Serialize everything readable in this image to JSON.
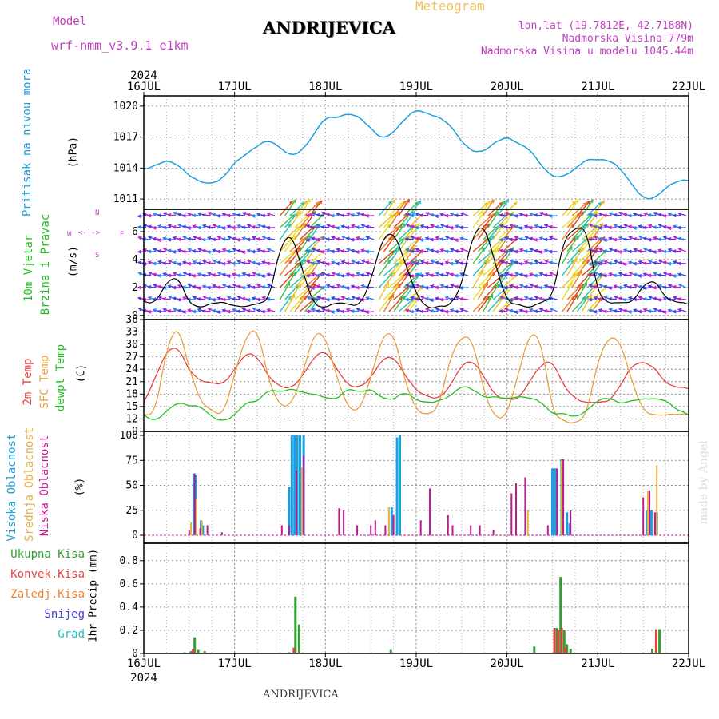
{
  "header": {
    "model_label": "Model",
    "model_name": "wrf-nmm_v3.9.1  e1km",
    "station": "ANDRIJEVICA",
    "meteogram": "Meteogram",
    "lonlat": "lon,lat (19.7812E, 42.7188N)",
    "altitude": "Nadmorska Visina 779m",
    "model_altitude": "Nadmorska Visina u modelu 1045.44m"
  },
  "footer": {
    "station": "ANDRIJEVICA",
    "credit": "made by Angel"
  },
  "colors": {
    "pressure": "#1a9fdf",
    "temp2m": "#e84040",
    "sfc": "#e8a040",
    "dewpt": "#20c020",
    "high_cloud": "#1a9fdf",
    "mid_cloud": "#e8b040",
    "low_cloud": "#c01890",
    "total_rain": "#30a030",
    "conv_rain": "#e84040",
    "frozen": "#f08030",
    "snow": "#4040e0",
    "hail": "#20c0c0",
    "wind_dir": "#c040c0"
  },
  "wind_compass": {
    "w": "W",
    "e": "E",
    "n": "N",
    "s": "S"
  },
  "chart_data": [
    {
      "type": "line",
      "panel": "pressure",
      "ylabel": [
        "Pritisak na nivou mora",
        "(hPa)"
      ],
      "ylim": [
        1010,
        1021
      ],
      "yticks": [
        1011,
        1014,
        1017,
        1020
      ],
      "x_days": [
        "16JUL",
        "17JUL",
        "18JUL",
        "19JUL",
        "20JUL",
        "21JUL",
        "22JUL"
      ],
      "x_year": "2024",
      "grid": true,
      "series": [
        {
          "values_every_6h": [
            1013.9,
            1014.3,
            1014.8,
            1014.3,
            1013.2,
            1012.6,
            1012.5,
            1013.1,
            1014.6,
            1015.3,
            1016.1,
            1016.7,
            1016.0,
            1015.2,
            1015.8,
            1017.3,
            1018.9,
            1018.8,
            1019.3,
            1019.0,
            1017.9,
            1016.8,
            1017.4,
            1018.7,
            1019.7,
            1019.3,
            1019.0,
            1018.2,
            1016.5,
            1015.5,
            1015.6,
            1016.6,
            1017.1,
            1016.4,
            1015.8,
            1014.2,
            1013.1,
            1013.2,
            1014.0,
            1014.9,
            1014.8,
            1014.7,
            1013.9,
            1012.4,
            1011.1,
            1011.1,
            1012.1,
            1012.7,
            1012.8
          ]
        }
      ]
    },
    {
      "type": "line",
      "panel": "wind",
      "ylabel": [
        "10m Vjetar",
        "Brzina i Pravac",
        "(m/s)"
      ],
      "ylim": [
        -0.3,
        7.6
      ],
      "yticks": [
        0,
        2,
        4,
        6
      ],
      "grid": true,
      "series": [
        {
          "name": "wind speed",
          "values_every_6h": [
            1.0,
            0.9,
            2.4,
            2.8,
            0.8,
            0.5,
            0.9,
            1.0,
            0.7,
            0.6,
            0.8,
            1.0,
            4.9,
            6.0,
            3.2,
            0.7,
            0.5,
            0.9,
            0.8,
            0.7,
            2.5,
            5.5,
            6.0,
            3.8,
            1.5,
            0.5,
            0.7,
            0.7,
            2.1,
            5.8,
            6.5,
            3.6,
            1.0,
            0.8,
            0.5,
            0.9,
            1.2,
            5.5,
            6.3,
            6.3,
            1.5,
            0.8,
            0.9,
            0.9,
            2.2,
            2.6,
            1.2,
            0.9,
            0.8
          ]
        }
      ]
    },
    {
      "type": "line",
      "panel": "temperature",
      "ylabel": [
        "2m Temp",
        "SFC Temp",
        "dewpt Temp",
        "(C)"
      ],
      "ylim": [
        9,
        36
      ],
      "yticks": [
        9,
        12,
        15,
        18,
        21,
        24,
        27,
        30,
        33,
        36
      ],
      "grid": true,
      "series": [
        {
          "name": "2m Temp",
          "values_every_6h": [
            16.0,
            22.0,
            28.5,
            29.5,
            23.5,
            21.0,
            20.8,
            20.5,
            24.0,
            28.0,
            27.0,
            22.0,
            19.8,
            19.5,
            22.5,
            27.0,
            28.5,
            24.0,
            20.0,
            19.7,
            22.0,
            26.5,
            27.0,
            22.5,
            18.8,
            17.5,
            17.0,
            20.0,
            25.0,
            26.0,
            22.0,
            17.5,
            17.0,
            16.8,
            21.0,
            25.0,
            26.0,
            20.0,
            17.0,
            16.0,
            16.0,
            16.0,
            20.0,
            25.0,
            26.0,
            24.5,
            20.5,
            19.5,
            19.3
          ]
        },
        {
          "name": "SFC Temp",
          "values_every_6h": [
            13.0,
            13.5,
            29.0,
            35.0,
            24.0,
            16.0,
            14.0,
            13.0,
            23.0,
            32.0,
            34.0,
            21.0,
            15.0,
            15.5,
            23.0,
            33.0,
            32.0,
            22.0,
            14.5,
            14.0,
            22.0,
            32.0,
            33.0,
            21.0,
            14.0,
            13.0,
            15.0,
            27.0,
            32.0,
            31.0,
            18.0,
            12.0,
            13.0,
            23.0,
            33.0,
            31.0,
            13.5,
            11.5,
            11.0,
            13.0,
            26.0,
            32.0,
            30.5,
            21.0,
            14.0,
            13.0,
            13.0,
            13.0,
            13.0
          ]
        },
        {
          "name": "dewpt Temp",
          "values_every_6h": [
            13.0,
            11.5,
            14.0,
            16.0,
            15.0,
            15.0,
            12.5,
            11.5,
            13.0,
            16.0,
            16.0,
            19.0,
            18.5,
            19.5,
            18.5,
            18.0,
            17.0,
            16.5,
            19.5,
            18.5,
            19.5,
            17.0,
            16.5,
            18.5,
            16.5,
            16.0,
            16.5,
            17.5,
            20.0,
            19.0,
            17.0,
            17.5,
            17.0,
            17.5,
            17.0,
            16.0,
            13.0,
            13.5,
            12.5,
            14.0,
            16.5,
            17.0,
            15.5,
            16.5,
            17.0,
            17.0,
            16.5,
            14.0,
            13.0
          ]
        }
      ]
    },
    {
      "type": "bar",
      "panel": "clouds",
      "ylabel": [
        "Visoka Oblacnost",
        "Srednja Oblacnost",
        "Niska Oblacnost",
        "(%)"
      ],
      "ylim": [
        -8,
        104
      ],
      "yticks": [
        0,
        25,
        50,
        75,
        100
      ],
      "grid": true,
      "series": [
        {
          "name": "Visoka Oblacnost",
          "points": [
            [
              0.55,
              62
            ],
            [
              0.57,
              60
            ],
            [
              0.63,
              15
            ],
            [
              0.65,
              10
            ],
            [
              1.6,
              48
            ],
            [
              1.63,
              100
            ],
            [
              1.66,
              100
            ],
            [
              1.69,
              100
            ],
            [
              1.72,
              100
            ],
            [
              1.76,
              100
            ],
            [
              2.79,
              98
            ],
            [
              2.82,
              100
            ],
            [
              2.73,
              28
            ],
            [
              4.5,
              67
            ],
            [
              4.53,
              67
            ],
            [
              4.6,
              76
            ],
            [
              4.66,
              23
            ],
            [
              4.69,
              12
            ],
            [
              5.54,
              25
            ],
            [
              5.59,
              25
            ],
            [
              5.65,
              23
            ]
          ]
        },
        {
          "name": "Srednja Oblacnost",
          "points": [
            [
              0.52,
              13
            ],
            [
              0.58,
              37
            ],
            [
              0.64,
              14
            ],
            [
              1.74,
              68
            ],
            [
              2.7,
              28
            ],
            [
              4.23,
              25
            ],
            [
              4.6,
              75
            ],
            [
              5.55,
              44
            ],
            [
              5.65,
              70
            ]
          ]
        },
        {
          "name": "Niska Oblacnost",
          "points": [
            [
              0.5,
              5
            ],
            [
              0.56,
              62
            ],
            [
              0.62,
              7
            ],
            [
              0.7,
              10
            ],
            [
              0.86,
              3
            ],
            [
              1.52,
              10
            ],
            [
              1.6,
              10
            ],
            [
              1.68,
              65
            ],
            [
              1.76,
              80
            ],
            [
              2.15,
              27
            ],
            [
              2.2,
              25
            ],
            [
              2.35,
              10
            ],
            [
              2.5,
              10
            ],
            [
              2.55,
              15
            ],
            [
              2.66,
              10
            ],
            [
              2.75,
              20
            ],
            [
              3.05,
              15
            ],
            [
              3.15,
              47
            ],
            [
              3.35,
              20
            ],
            [
              3.4,
              10
            ],
            [
              3.6,
              10
            ],
            [
              3.7,
              10
            ],
            [
              3.85,
              5
            ],
            [
              4.05,
              42
            ],
            [
              4.1,
              52
            ],
            [
              4.2,
              58
            ],
            [
              4.45,
              10
            ],
            [
              4.55,
              67
            ],
            [
              4.62,
              76
            ],
            [
              4.7,
              25
            ],
            [
              5.5,
              38
            ],
            [
              5.57,
              45
            ],
            [
              5.63,
              23
            ]
          ]
        }
      ]
    },
    {
      "type": "bar",
      "panel": "precip",
      "ylabel": [
        "1hr Precip (mm)"
      ],
      "legend": [
        "Ukupna Kisa",
        "Konvek.Kisa",
        "Zaledj.Kisa",
        "Snijeg",
        "Grad"
      ],
      "ylim": [
        0,
        0.95
      ],
      "yticks": [
        0,
        0.2,
        0.4,
        0.6,
        0.8
      ],
      "grid": true,
      "series": [
        {
          "name": "Ukupna Kisa",
          "points": [
            [
              0.45,
              0.01
            ],
            [
              0.52,
              0.02
            ],
            [
              0.56,
              0.14
            ],
            [
              0.6,
              0.03
            ],
            [
              0.67,
              0.02
            ],
            [
              1.6,
              0.01
            ],
            [
              1.67,
              0.49
            ],
            [
              1.71,
              0.25
            ],
            [
              2.72,
              0.03
            ],
            [
              4.3,
              0.06
            ],
            [
              4.55,
              0.22
            ],
            [
              4.59,
              0.66
            ],
            [
              4.63,
              0.2
            ],
            [
              4.66,
              0.08
            ],
            [
              4.7,
              0.04
            ],
            [
              5.6,
              0.04
            ],
            [
              5.68,
              0.21
            ]
          ]
        },
        {
          "name": "Konvek.Kisa",
          "points": [
            [
              0.56,
              0.04
            ],
            [
              1.67,
              0.05
            ],
            [
              4.54,
              0.22
            ],
            [
              4.58,
              0.2
            ],
            [
              4.62,
              0.22
            ],
            [
              4.66,
              0.05
            ],
            [
              5.66,
              0.21
            ]
          ]
        }
      ]
    }
  ]
}
